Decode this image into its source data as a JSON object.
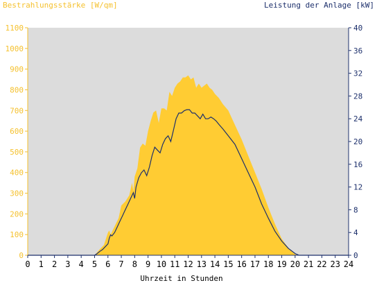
{
  "chart_data": {
    "type": "area",
    "left_axis_label": "Bestrahlungsstärke [W/qm]",
    "right_axis_label": "Leistung der Anlage [kW]",
    "xlabel": "Uhrzeit in Stunden",
    "xlim": [
      0,
      24
    ],
    "ylim_left": [
      0,
      1100
    ],
    "ylim_right": [
      0,
      40
    ],
    "x_ticks": [
      "0",
      "1",
      "2",
      "3",
      "4",
      "5",
      "6",
      "7",
      "8",
      "9",
      "10",
      "11",
      "12",
      "13",
      "14",
      "15",
      "16",
      "17",
      "18",
      "19",
      "20",
      "21",
      "22",
      "23",
      "24"
    ],
    "y_ticks_left": [
      "0",
      "100",
      "200",
      "300",
      "400",
      "500",
      "600",
      "700",
      "800",
      "900",
      "1000",
      "1100"
    ],
    "y_ticks_right": [
      "0",
      "4",
      "8",
      "12",
      "16",
      "20",
      "24",
      "28",
      "32",
      "36",
      "40"
    ],
    "grid": false,
    "colors": {
      "plot_background": "#dcdcdc",
      "irradiance_fill": "#ffcc33",
      "power_line": "#1c2f6b",
      "left_axis": "#f5c12e",
      "right_axis": "#1c2f6b"
    },
    "series": [
      {
        "name": "Bestrahlungsstärke [W/qm]",
        "axis": "left",
        "kind": "area",
        "x": [
          0,
          5.0,
          5.2,
          5.4,
          5.7,
          5.9,
          6.0,
          6.1,
          6.2,
          6.5,
          6.8,
          7.0,
          7.3,
          7.6,
          7.8,
          7.9,
          8.0,
          8.2,
          8.4,
          8.6,
          8.8,
          9.0,
          9.2,
          9.4,
          9.6,
          9.8,
          10.0,
          10.2,
          10.4,
          10.6,
          10.8,
          11.0,
          11.2,
          11.4,
          11.6,
          11.8,
          12.0,
          12.2,
          12.4,
          12.6,
          12.8,
          13.0,
          13.2,
          13.4,
          13.6,
          13.8,
          14.0,
          14.3,
          14.6,
          15.0,
          15.5,
          16.0,
          16.5,
          17.0,
          17.5,
          18.0,
          18.5,
          19.0,
          19.5,
          19.8,
          20.0,
          20.2,
          24
        ],
        "y": [
          0,
          0,
          15,
          30,
          50,
          90,
          110,
          120,
          100,
          140,
          180,
          240,
          260,
          290,
          350,
          310,
          380,
          420,
          520,
          540,
          530,
          600,
          650,
          690,
          700,
          640,
          710,
          710,
          700,
          790,
          770,
          810,
          830,
          840,
          860,
          860,
          870,
          850,
          860,
          810,
          830,
          810,
          820,
          830,
          810,
          800,
          780,
          760,
          730,
          700,
          630,
          560,
          480,
          400,
          320,
          230,
          150,
          80,
          35,
          15,
          5,
          0,
          0
        ]
      },
      {
        "name": "Leistung der Anlage [kW]",
        "axis": "right",
        "kind": "line",
        "x": [
          0,
          5.0,
          5.2,
          5.4,
          5.6,
          5.8,
          6.0,
          6.1,
          6.2,
          6.3,
          6.5,
          6.7,
          6.9,
          7.1,
          7.3,
          7.5,
          7.7,
          7.9,
          8.0,
          8.1,
          8.3,
          8.5,
          8.7,
          8.9,
          9.1,
          9.3,
          9.5,
          9.7,
          9.9,
          10.1,
          10.3,
          10.5,
          10.7,
          10.9,
          11.1,
          11.3,
          11.5,
          11.7,
          11.9,
          12.1,
          12.3,
          12.5,
          12.7,
          12.9,
          13.1,
          13.3,
          13.5,
          13.7,
          13.9,
          14.1,
          14.3,
          14.6,
          15.0,
          15.5,
          16.0,
          16.5,
          17.0,
          17.5,
          18.0,
          18.5,
          19.0,
          19.5,
          20.0,
          20.3,
          24
        ],
        "y": [
          0,
          0,
          0.3,
          0.7,
          1.0,
          1.5,
          2.0,
          3.0,
          3.6,
          3.4,
          4.0,
          5.0,
          6.0,
          7.0,
          8.0,
          9.0,
          10.0,
          11.0,
          10.0,
          12.0,
          13.6,
          14.5,
          15.0,
          14.0,
          15.5,
          17.5,
          19.0,
          18.5,
          18.0,
          19.5,
          20.5,
          21.0,
          20.0,
          22.0,
          24.0,
          25.0,
          25.0,
          25.4,
          25.6,
          25.6,
          25.0,
          25.0,
          24.5,
          24.0,
          24.8,
          24.0,
          24.0,
          24.3,
          24.0,
          23.6,
          23.0,
          22.2,
          21.0,
          19.5,
          17.0,
          14.5,
          12.0,
          9.0,
          6.5,
          4.2,
          2.5,
          1.2,
          0.3,
          0,
          0
        ]
      }
    ]
  }
}
